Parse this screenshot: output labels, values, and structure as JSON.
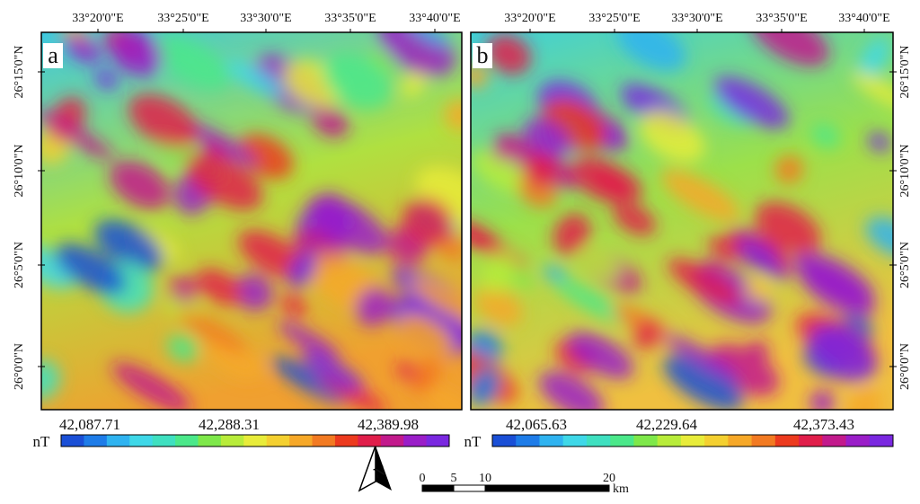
{
  "panels": [
    {
      "label": "a",
      "top_ticks": [
        "33°20'0\"E",
        "33°25'0\"E",
        "33°30'0\"E",
        "33°35'0\"E",
        "33°40'0\"E"
      ],
      "side_ticks": [
        "26°15'0\"N",
        "26°10'0\"N",
        "26°5'0\"N",
        "26°0'0\"N"
      ],
      "colorbar": {
        "unit": "nT",
        "labels": [
          "42,087.71",
          "42,288.31",
          "42,389.98"
        ]
      }
    },
    {
      "label": "b",
      "top_ticks": [
        "33°20'0\"E",
        "33°25'0\"E",
        "33°30'0\"E",
        "33°35'0\"E",
        "33°40'0\"E"
      ],
      "side_ticks": [
        "26°15'0\"N",
        "26°10'0\"N",
        "26°5'0\"N",
        "26°0'0\"N"
      ],
      "colorbar": {
        "unit": "nT",
        "labels": [
          "42,065.63",
          "42,229.64",
          "42,373.43"
        ]
      }
    }
  ],
  "scale_bar": {
    "labels": [
      "0",
      "5",
      "10",
      "20"
    ],
    "unit": "km"
  }
}
